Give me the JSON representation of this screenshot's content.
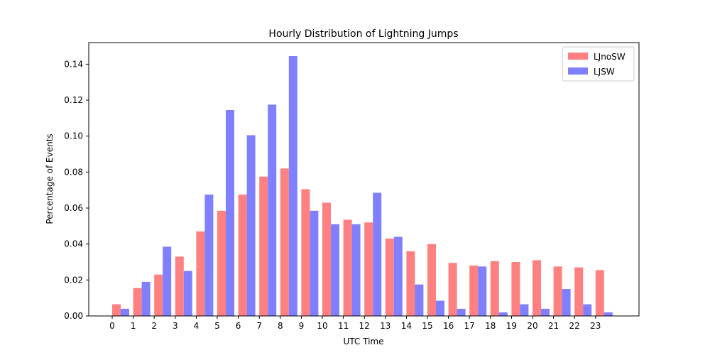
{
  "chart_data": {
    "type": "bar",
    "title": "Hourly Distribution of Lightning Jumps",
    "xlabel": "UTC Time",
    "ylabel": "Percentage of Events",
    "categories": [
      "0",
      "1",
      "2",
      "3",
      "4",
      "5",
      "6",
      "7",
      "8",
      "9",
      "10",
      "11",
      "12",
      "13",
      "14",
      "15",
      "16",
      "17",
      "18",
      "19",
      "20",
      "21",
      "22",
      "23"
    ],
    "ylim": [
      0,
      0.152
    ],
    "yticks": [
      "0.00",
      "0.02",
      "0.04",
      "0.06",
      "0.08",
      "0.10",
      "0.12",
      "0.14"
    ],
    "grid": false,
    "legend_position": "top-right",
    "series": [
      {
        "name": "LJnoSW",
        "color": "#ff8080",
        "values": [
          0.0065,
          0.0155,
          0.023,
          0.033,
          0.047,
          0.0585,
          0.0675,
          0.0775,
          0.082,
          0.0705,
          0.063,
          0.0535,
          0.052,
          0.043,
          0.036,
          0.04,
          0.0295,
          0.028,
          0.0305,
          0.03,
          0.031,
          0.0275,
          0.027,
          0.0255
        ]
      },
      {
        "name": "LJSW",
        "color": "#8080ff",
        "values": [
          0.004,
          0.019,
          0.0385,
          0.025,
          0.0675,
          0.1145,
          0.1005,
          0.1175,
          0.1445,
          0.0585,
          0.051,
          0.051,
          0.0685,
          0.044,
          0.0175,
          0.0085,
          0.004,
          0.0275,
          0.002,
          0.0065,
          0.004,
          0.015,
          0.0065,
          0.002
        ]
      }
    ]
  }
}
